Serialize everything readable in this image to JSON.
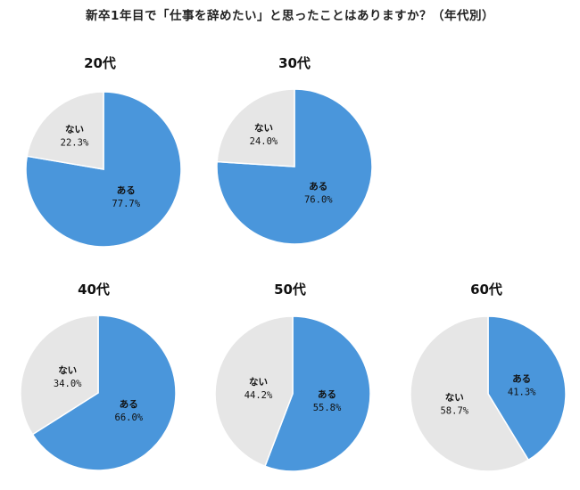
{
  "title": "新卒1年目で「仕事を辞めたい」と思ったことはありますか？（年代別）",
  "colors": {
    "yes": "#4a96db",
    "no": "#e6e6e6",
    "stroke": "#ffffff"
  },
  "chart_data": [
    {
      "type": "pie",
      "title": "20代",
      "slices": [
        {
          "label": "ある",
          "value": 77.7,
          "display": "77.7%"
        },
        {
          "label": "ない",
          "value": 22.3,
          "display": "22.3%"
        }
      ]
    },
    {
      "type": "pie",
      "title": "30代",
      "slices": [
        {
          "label": "ある",
          "value": 76.0,
          "display": "76.0%"
        },
        {
          "label": "ない",
          "value": 24.0,
          "display": "24.0%"
        }
      ]
    },
    {
      "type": "pie",
      "title": "40代",
      "slices": [
        {
          "label": "ある",
          "value": 66.0,
          "display": "66.0%"
        },
        {
          "label": "ない",
          "value": 34.0,
          "display": "34.0%"
        }
      ]
    },
    {
      "type": "pie",
      "title": "50代",
      "slices": [
        {
          "label": "ある",
          "value": 55.8,
          "display": "55.8%"
        },
        {
          "label": "ない",
          "value": 44.2,
          "display": "44.2%"
        }
      ]
    },
    {
      "type": "pie",
      "title": "60代",
      "slices": [
        {
          "label": "ある",
          "value": 41.3,
          "display": "41.3%"
        },
        {
          "label": "ない",
          "value": 58.7,
          "display": "58.7%"
        }
      ]
    }
  ]
}
